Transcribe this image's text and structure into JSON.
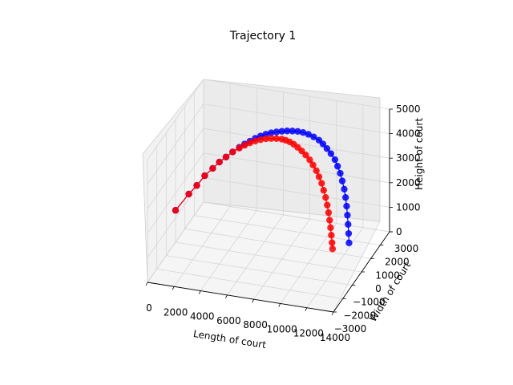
{
  "chart_data": {
    "type": "scatter3d",
    "title": "Trajectory 1",
    "xlabel": "Length of court",
    "ylabel": "Width of court",
    "zlabel": "Height of court",
    "x_ticks": [
      "0",
      "2000",
      "4000",
      "6000",
      "8000",
      "10000",
      "12000",
      "14000"
    ],
    "y_ticks": [
      "−3000",
      "−2000",
      "−1000",
      "0",
      "1000",
      "2000",
      "3000"
    ],
    "z_ticks": [
      "0",
      "1000",
      "2000",
      "3000",
      "4000",
      "5000"
    ],
    "grid": true,
    "series": [
      {
        "color": "#0000ff",
        "points": [
          [
            0,
            0,
            1300
          ],
          [
            1000,
            0,
            2050
          ],
          [
            1600,
            0,
            2450
          ],
          [
            2200,
            0,
            2900
          ],
          [
            2800,
            0,
            3250
          ],
          [
            3300,
            0,
            3550
          ],
          [
            3800,
            0,
            3800
          ],
          [
            4300,
            0,
            4050
          ],
          [
            4800,
            0,
            4280
          ],
          [
            5200,
            0,
            4450
          ],
          [
            5600,
            0,
            4600
          ],
          [
            6000,
            0,
            4750
          ],
          [
            6400,
            0,
            4880
          ],
          [
            6800,
            0,
            4990
          ],
          [
            7200,
            0,
            5080
          ],
          [
            7600,
            0,
            5150
          ],
          [
            8000,
            0,
            5210
          ],
          [
            8400,
            0,
            5260
          ],
          [
            8800,
            0,
            5290
          ],
          [
            9200,
            0,
            5310
          ],
          [
            9600,
            0,
            5300
          ],
          [
            10000,
            0,
            5260
          ],
          [
            10400,
            0,
            5190
          ],
          [
            10800,
            0,
            5090
          ],
          [
            11100,
            0,
            4960
          ],
          [
            11400,
            0,
            4800
          ],
          [
            11700,
            0,
            4620
          ],
          [
            12000,
            0,
            4400
          ],
          [
            12200,
            0,
            4150
          ],
          [
            12400,
            0,
            3880
          ],
          [
            12550,
            0,
            3580
          ],
          [
            12700,
            0,
            3260
          ],
          [
            12800,
            0,
            2930
          ],
          [
            12880,
            0,
            2580
          ],
          [
            12940,
            0,
            2220
          ],
          [
            12990,
            0,
            1850
          ],
          [
            13030,
            0,
            1480
          ],
          [
            13060,
            0,
            1100
          ]
        ]
      },
      {
        "color": "#ff0000",
        "points": [
          [
            0,
            0,
            1300
          ],
          [
            1000,
            0,
            2050
          ],
          [
            1600,
            0,
            2450
          ],
          [
            2200,
            0,
            2900
          ],
          [
            2800,
            0,
            3250
          ],
          [
            3300,
            0,
            3550
          ],
          [
            3800,
            0,
            3800
          ],
          [
            4300,
            0,
            4050
          ],
          [
            4800,
            0,
            4250
          ],
          [
            5200,
            0,
            4400
          ],
          [
            5600,
            0,
            4530
          ],
          [
            6000,
            0,
            4640
          ],
          [
            6400,
            0,
            4730
          ],
          [
            6800,
            0,
            4800
          ],
          [
            7200,
            0,
            4850
          ],
          [
            7600,
            0,
            4880
          ],
          [
            8000,
            0,
            4890
          ],
          [
            8300,
            0,
            4870
          ],
          [
            8600,
            0,
            4830
          ],
          [
            8900,
            0,
            4760
          ],
          [
            9200,
            0,
            4660
          ],
          [
            9500,
            0,
            4540
          ],
          [
            9800,
            0,
            4400
          ],
          [
            10100,
            0,
            4230
          ],
          [
            10350,
            0,
            4040
          ],
          [
            10600,
            0,
            3830
          ],
          [
            10800,
            0,
            3600
          ],
          [
            11000,
            0,
            3350
          ],
          [
            11150,
            0,
            3080
          ],
          [
            11300,
            0,
            2800
          ],
          [
            11420,
            0,
            2500
          ],
          [
            11520,
            0,
            2200
          ],
          [
            11600,
            0,
            1900
          ],
          [
            11670,
            0,
            1600
          ],
          [
            11730,
            0,
            1300
          ],
          [
            11780,
            0,
            1000
          ],
          [
            11820,
            0,
            750
          ]
        ]
      }
    ]
  }
}
